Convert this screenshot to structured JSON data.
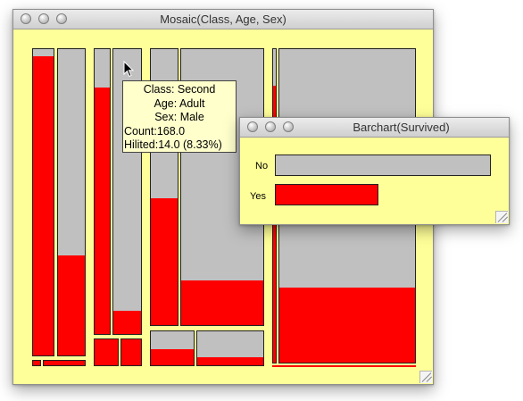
{
  "mosaic_window": {
    "title": "Mosaic(Class, Age, Sex)",
    "colors": {
      "base": "#c0c0c0",
      "highlight": "#ff0000",
      "background": "#ffff99"
    },
    "tooltip": {
      "class_line": "Class: Second",
      "age_line": "Age: Adult",
      "sex_line": "Sex: Male",
      "count_line": "Count:168.0",
      "hilited_line": "Hilited:14.0 (8.33%)"
    }
  },
  "barchart_window": {
    "title": "Barchart(Survived)",
    "bars": [
      {
        "label": "No",
        "color": "#c0c0c0"
      },
      {
        "label": "Yes",
        "color": "#ff0000"
      }
    ]
  }
}
